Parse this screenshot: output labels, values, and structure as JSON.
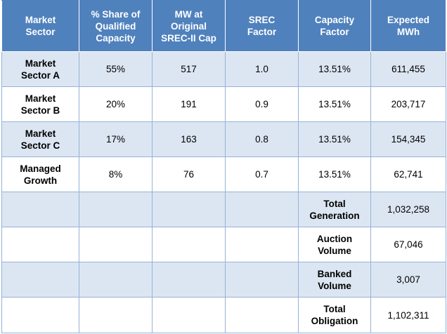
{
  "headers": {
    "sector": "Market\nSector",
    "share": "% Share of\nQualified\nCapacity",
    "mw": "MW at\nOriginal\nSREC-II Cap",
    "srec": "SREC\nFactor",
    "capacity_factor": "Capacity\nFactor",
    "mwh": "Expected\nMWh"
  },
  "rows": [
    {
      "sector": "Market\nSector A",
      "share": "55%",
      "mw": "517",
      "srec": "1.0",
      "capacity_factor": "13.51%",
      "mwh": "611,455"
    },
    {
      "sector": "Market\nSector B",
      "share": "20%",
      "mw": "191",
      "srec": "0.9",
      "capacity_factor": "13.51%",
      "mwh": "203,717"
    },
    {
      "sector": "Market\nSector C",
      "share": "17%",
      "mw": "163",
      "srec": "0.8",
      "capacity_factor": "13.51%",
      "mwh": "154,345"
    },
    {
      "sector": "Managed\nGrowth",
      "share": "8%",
      "mw": "76",
      "srec": "0.7",
      "capacity_factor": "13.51%",
      "mwh": "62,741"
    }
  ],
  "summary": [
    {
      "label": "Total\nGeneration",
      "value": "1,032,258"
    },
    {
      "label": "Auction\nVolume",
      "value": "67,046"
    },
    {
      "label": "Banked\nVolume",
      "value": "3,007"
    },
    {
      "label": "Total\nObligation",
      "value": "1,102,311"
    }
  ],
  "colors": {
    "header_bg": "#4f81bd",
    "header_text": "#ffffff",
    "band_bg": "#dce6f2",
    "border": "#95b3d7"
  }
}
